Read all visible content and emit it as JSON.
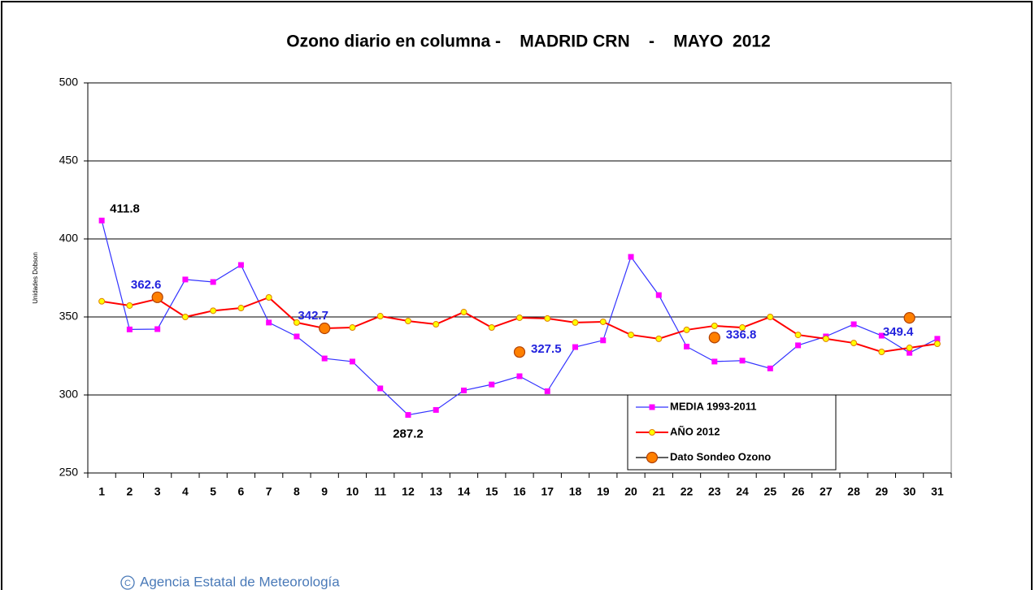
{
  "chart_data": {
    "type": "line",
    "title": "Ozono diario en columna -    MADRID CRN    -    MAYO  2012",
    "y_label": "Unidades Dobson",
    "footer": "Agencia Estatal de Meteorología",
    "categories": [
      "1",
      "2",
      "3",
      "4",
      "5",
      "6",
      "7",
      "8",
      "9",
      "10",
      "11",
      "12",
      "13",
      "14",
      "15",
      "16",
      "17",
      "18",
      "19",
      "20",
      "21",
      "22",
      "23",
      "24",
      "25",
      "26",
      "27",
      "28",
      "29",
      "30",
      "31"
    ],
    "ylim": [
      250,
      500
    ],
    "yticks": [
      250,
      300,
      350,
      400,
      450,
      500
    ],
    "grid": true,
    "series": [
      {
        "name": "MEDIA 1993-2011",
        "color": "#3333ff",
        "marker": "square",
        "marker_color": "#ff00ff",
        "label_color": "#000000",
        "show_labels": [
          0,
          11
        ],
        "values": [
          411.8,
          342,
          342.2,
          374,
          372.4,
          383.3,
          346.4,
          337.5,
          323.4,
          321.4,
          304.2,
          287.2,
          290.4,
          302.9,
          306.7,
          312,
          302.4,
          330.7,
          335,
          388.5,
          364,
          331,
          321.4,
          322,
          317,
          331.8,
          337.5,
          345.3,
          338,
          327,
          336
        ]
      },
      {
        "name": "AÑO 2012",
        "color": "#ff0000",
        "marker": "circle",
        "marker_color": "#ffff00",
        "label_color": "#000000",
        "show_labels": [],
        "values": [
          360,
          357.3,
          361.5,
          350,
          354,
          355.7,
          362.5,
          346.4,
          342.7,
          343.2,
          350.5,
          347.4,
          345.3,
          353.1,
          343.2,
          349.5,
          349,
          346.4,
          346.9,
          338.5,
          336,
          341.7,
          344.3,
          343.2,
          350,
          338.5,
          336,
          333.3,
          327.6,
          330.2,
          332.8
        ]
      },
      {
        "name": "Dato Sondeo Ozono",
        "color": "#000000",
        "marker": "bigcircle",
        "marker_color": "#ff8000",
        "label_color": "#2222dd",
        "show_labels": [
          2,
          8,
          15,
          22,
          29
        ],
        "line": false,
        "values": [
          null,
          null,
          362.6,
          null,
          null,
          null,
          null,
          null,
          342.7,
          null,
          null,
          null,
          null,
          null,
          null,
          327.5,
          null,
          null,
          null,
          null,
          null,
          null,
          336.8,
          null,
          null,
          null,
          null,
          null,
          null,
          349.4,
          null
        ]
      }
    ]
  }
}
